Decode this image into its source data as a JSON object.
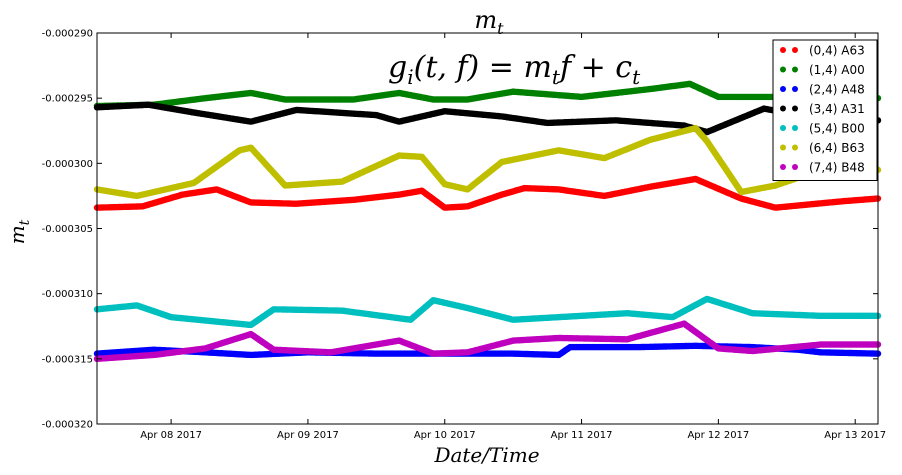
{
  "chart_data": {
    "type": "scatter",
    "title": "m_t",
    "xlabel": "Date/Time",
    "ylabel": "m_t",
    "annotation": "g_i(t, f) = m_t f + c_t",
    "xlim": [
      "2017-04-07T11:00",
      "2017-04-13T04:00"
    ],
    "ylim": [
      -0.00032,
      -0.00029
    ],
    "x_ticks": [
      "Apr 08 2017",
      "Apr 09 2017",
      "Apr 10 2017",
      "Apr 11 2017",
      "Apr 12 2017",
      "Apr 13 2017"
    ],
    "x_tick_dates": [
      "2017-04-08T00:00",
      "2017-04-09T00:00",
      "2017-04-10T00:00",
      "2017-04-11T00:00",
      "2017-04-12T00:00",
      "2017-04-13T00:00"
    ],
    "y_ticks": [
      "-0.000290",
      "-0.000295",
      "-0.000300",
      "-0.000305",
      "-0.000310",
      "-0.000315",
      "-0.000320"
    ],
    "y_tick_values": [
      -0.00029,
      -0.000295,
      -0.0003,
      -0.000305,
      -0.00031,
      -0.000315,
      -0.00032
    ],
    "grid": false,
    "legend_position": "top-right",
    "series": [
      {
        "name": "(0,4) A63",
        "color": "#ff0000",
        "points": [
          [
            "2017-04-07T11:00",
            -0.0003034
          ],
          [
            "2017-04-07T19:00",
            -0.0003033
          ],
          [
            "2017-04-08T02:00",
            -0.0003024
          ],
          [
            "2017-04-08T08:00",
            -0.000302
          ],
          [
            "2017-04-08T14:00",
            -0.000303
          ],
          [
            "2017-04-08T22:00",
            -0.0003031
          ],
          [
            "2017-04-09T08:00",
            -0.0003028
          ],
          [
            "2017-04-09T16:00",
            -0.0003024
          ],
          [
            "2017-04-09T20:00",
            -0.0003021
          ],
          [
            "2017-04-10T00:00",
            -0.0003034
          ],
          [
            "2017-04-10T04:00",
            -0.0003033
          ],
          [
            "2017-04-10T10:00",
            -0.0003024
          ],
          [
            "2017-04-10T14:00",
            -0.0003019
          ],
          [
            "2017-04-10T20:00",
            -0.000302
          ],
          [
            "2017-04-11T04:00",
            -0.0003025
          ],
          [
            "2017-04-11T12:00",
            -0.0003018
          ],
          [
            "2017-04-11T20:00",
            -0.0003012
          ],
          [
            "2017-04-12T04:00",
            -0.0003027
          ],
          [
            "2017-04-12T10:00",
            -0.0003034
          ],
          [
            "2017-04-12T22:00",
            -0.0003029
          ],
          [
            "2017-04-13T04:00",
            -0.0003027
          ]
        ]
      },
      {
        "name": "(1,4) A00",
        "color": "#008000",
        "points": [
          [
            "2017-04-07T11:00",
            -0.0002956
          ],
          [
            "2017-04-07T21:00",
            -0.0002955
          ],
          [
            "2017-04-08T06:00",
            -0.000295
          ],
          [
            "2017-04-08T14:00",
            -0.0002946
          ],
          [
            "2017-04-08T20:00",
            -0.0002951
          ],
          [
            "2017-04-09T08:00",
            -0.0002951
          ],
          [
            "2017-04-09T16:00",
            -0.0002946
          ],
          [
            "2017-04-09T22:00",
            -0.0002951
          ],
          [
            "2017-04-10T04:00",
            -0.0002951
          ],
          [
            "2017-04-10T12:00",
            -0.0002945
          ],
          [
            "2017-04-11T00:00",
            -0.0002949
          ],
          [
            "2017-04-11T12:00",
            -0.0002943
          ],
          [
            "2017-04-11T19:00",
            -0.0002939
          ],
          [
            "2017-04-12T00:00",
            -0.0002949
          ],
          [
            "2017-04-12T12:00",
            -0.0002949
          ],
          [
            "2017-04-12T22:00",
            -0.0002949
          ],
          [
            "2017-04-13T04:00",
            -0.000295
          ]
        ]
      },
      {
        "name": "(2,4) A48",
        "color": "#0000ff",
        "points": [
          [
            "2017-04-07T11:00",
            -0.0003146
          ],
          [
            "2017-04-07T21:00",
            -0.0003143
          ],
          [
            "2017-04-08T06:00",
            -0.0003145
          ],
          [
            "2017-04-08T14:00",
            -0.0003147
          ],
          [
            "2017-04-09T00:00",
            -0.0003145
          ],
          [
            "2017-04-09T12:00",
            -0.0003146
          ],
          [
            "2017-04-10T00:00",
            -0.0003146
          ],
          [
            "2017-04-10T12:00",
            -0.0003146
          ],
          [
            "2017-04-10T20:00",
            -0.0003147
          ],
          [
            "2017-04-10T22:00",
            -0.0003141
          ],
          [
            "2017-04-11T10:00",
            -0.0003141
          ],
          [
            "2017-04-11T20:00",
            -0.000314
          ],
          [
            "2017-04-12T06:00",
            -0.0003141
          ],
          [
            "2017-04-12T14:00",
            -0.0003143
          ],
          [
            "2017-04-12T18:00",
            -0.0003145
          ],
          [
            "2017-04-13T04:00",
            -0.0003146
          ]
        ]
      },
      {
        "name": "(3,4) A31",
        "color": "#000000",
        "points": [
          [
            "2017-04-07T11:00",
            -0.0002957
          ],
          [
            "2017-04-07T20:00",
            -0.0002955
          ],
          [
            "2017-04-08T04:00",
            -0.0002961
          ],
          [
            "2017-04-08T14:00",
            -0.0002968
          ],
          [
            "2017-04-08T22:00",
            -0.0002959
          ],
          [
            "2017-04-09T12:00",
            -0.0002963
          ],
          [
            "2017-04-09T16:00",
            -0.0002968
          ],
          [
            "2017-04-10T00:00",
            -0.000296
          ],
          [
            "2017-04-10T10:00",
            -0.0002964
          ],
          [
            "2017-04-10T18:00",
            -0.0002969
          ],
          [
            "2017-04-11T06:00",
            -0.0002967
          ],
          [
            "2017-04-11T18:00",
            -0.0002971
          ],
          [
            "2017-04-11T22:00",
            -0.0002976
          ],
          [
            "2017-04-12T08:00",
            -0.0002958
          ],
          [
            "2017-04-12T18:00",
            -0.0002966
          ],
          [
            "2017-04-13T04:00",
            -0.0002967
          ]
        ]
      },
      {
        "name": "(5,4) B00",
        "color": "#00bfbf",
        "points": [
          [
            "2017-04-07T11:00",
            -0.0003112
          ],
          [
            "2017-04-07T18:00",
            -0.0003109
          ],
          [
            "2017-04-08T00:00",
            -0.0003118
          ],
          [
            "2017-04-08T14:00",
            -0.0003124
          ],
          [
            "2017-04-08T18:00",
            -0.0003112
          ],
          [
            "2017-04-09T06:00",
            -0.0003113
          ],
          [
            "2017-04-09T18:00",
            -0.000312
          ],
          [
            "2017-04-09T22:00",
            -0.0003105
          ],
          [
            "2017-04-10T04:00",
            -0.0003111
          ],
          [
            "2017-04-10T12:00",
            -0.000312
          ],
          [
            "2017-04-11T00:00",
            -0.0003117
          ],
          [
            "2017-04-11T08:00",
            -0.0003115
          ],
          [
            "2017-04-11T16:00",
            -0.0003118
          ],
          [
            "2017-04-11T22:00",
            -0.0003104
          ],
          [
            "2017-04-12T06:00",
            -0.0003115
          ],
          [
            "2017-04-12T18:00",
            -0.0003117
          ],
          [
            "2017-04-13T04:00",
            -0.0003117
          ]
        ]
      },
      {
        "name": "(6,4) B63",
        "color": "#bfbf00",
        "points": [
          [
            "2017-04-07T11:00",
            -0.000302
          ],
          [
            "2017-04-07T18:00",
            -0.0003025
          ],
          [
            "2017-04-08T04:00",
            -0.0003015
          ],
          [
            "2017-04-08T12:00",
            -0.000299
          ],
          [
            "2017-04-08T14:00",
            -0.0002988
          ],
          [
            "2017-04-08T20:00",
            -0.0003017
          ],
          [
            "2017-04-09T06:00",
            -0.0003014
          ],
          [
            "2017-04-09T16:00",
            -0.0002994
          ],
          [
            "2017-04-09T20:00",
            -0.0002995
          ],
          [
            "2017-04-10T00:00",
            -0.0003016
          ],
          [
            "2017-04-10T04:00",
            -0.000302
          ],
          [
            "2017-04-10T10:00",
            -0.0002999
          ],
          [
            "2017-04-10T20:00",
            -0.000299
          ],
          [
            "2017-04-11T04:00",
            -0.0002996
          ],
          [
            "2017-04-11T12:00",
            -0.0002982
          ],
          [
            "2017-04-11T20:00",
            -0.0002973
          ],
          [
            "2017-04-11T22:00",
            -0.0002983
          ],
          [
            "2017-04-12T04:00",
            -0.0003022
          ],
          [
            "2017-04-12T10:00",
            -0.0003017
          ],
          [
            "2017-04-12T18:00",
            -0.0003005
          ],
          [
            "2017-04-13T04:00",
            -0.0003005
          ]
        ]
      },
      {
        "name": "(7,4) B48",
        "color": "#bf00bf",
        "points": [
          [
            "2017-04-07T11:00",
            -0.000315
          ],
          [
            "2017-04-07T21:00",
            -0.0003147
          ],
          [
            "2017-04-08T06:00",
            -0.0003142
          ],
          [
            "2017-04-08T14:00",
            -0.0003131
          ],
          [
            "2017-04-08T18:00",
            -0.0003143
          ],
          [
            "2017-04-09T04:00",
            -0.0003145
          ],
          [
            "2017-04-09T16:00",
            -0.0003136
          ],
          [
            "2017-04-09T22:00",
            -0.0003146
          ],
          [
            "2017-04-10T04:00",
            -0.0003145
          ],
          [
            "2017-04-10T12:00",
            -0.0003136
          ],
          [
            "2017-04-10T20:00",
            -0.0003134
          ],
          [
            "2017-04-11T08:00",
            -0.0003135
          ],
          [
            "2017-04-11T18:00",
            -0.0003123
          ],
          [
            "2017-04-12T00:00",
            -0.0003142
          ],
          [
            "2017-04-12T06:00",
            -0.0003144
          ],
          [
            "2017-04-12T18:00",
            -0.0003139
          ],
          [
            "2017-04-13T04:00",
            -0.0003139
          ]
        ]
      }
    ]
  }
}
